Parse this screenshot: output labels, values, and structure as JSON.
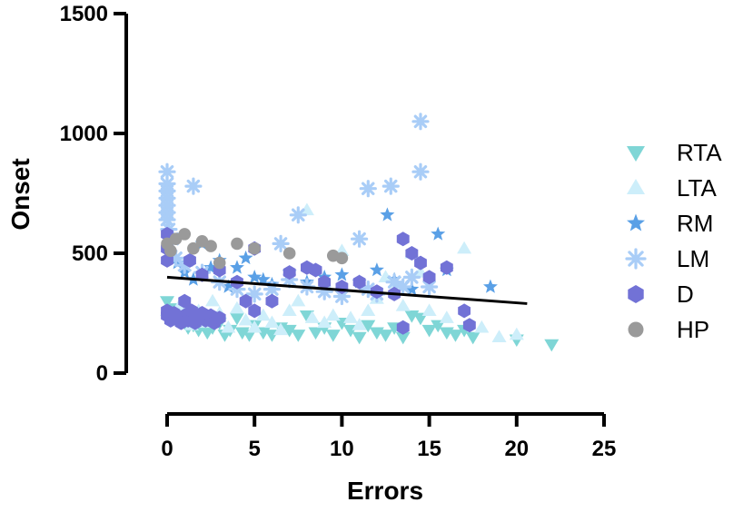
{
  "chart_data": {
    "type": "scatter",
    "title": "",
    "xlabel": "Errors",
    "ylabel": "Onset",
    "xlim": [
      0,
      25
    ],
    "ylim": [
      0,
      1500
    ],
    "xticks": [
      0,
      5,
      10,
      15,
      20,
      25
    ],
    "yticks": [
      0,
      500,
      1000,
      1500
    ],
    "xtick_labels": [
      "0",
      "5",
      "10",
      "15",
      "20",
      "25"
    ],
    "ytick_labels": [
      "0",
      "500",
      "1000",
      "1500"
    ],
    "grid": false,
    "legend": "right",
    "series": [
      {
        "name": "RTA",
        "marker": "triangle-down",
        "color": "#7fd6d6",
        "points": [
          [
            0,
            300
          ],
          [
            0.3,
            270
          ],
          [
            0.5,
            250
          ],
          [
            0.8,
            230
          ],
          [
            1,
            210
          ],
          [
            1.2,
            190
          ],
          [
            1.5,
            200
          ],
          [
            1.8,
            180
          ],
          [
            2,
            220
          ],
          [
            2.3,
            170
          ],
          [
            2.6,
            190
          ],
          [
            3,
            210
          ],
          [
            3.3,
            160
          ],
          [
            3.6,
            180
          ],
          [
            4,
            230
          ],
          [
            4.3,
            170
          ],
          [
            4.7,
            160
          ],
          [
            5,
            200
          ],
          [
            5.5,
            170
          ],
          [
            6,
            160
          ],
          [
            6.5,
            190
          ],
          [
            7,
            180
          ],
          [
            7.5,
            160
          ],
          [
            8,
            240
          ],
          [
            8.5,
            170
          ],
          [
            9,
            190
          ],
          [
            9.5,
            160
          ],
          [
            10,
            210
          ],
          [
            10.5,
            180
          ],
          [
            11,
            150
          ],
          [
            11.5,
            200
          ],
          [
            12,
            170
          ],
          [
            12.5,
            160
          ],
          [
            13,
            190
          ],
          [
            13.5,
            150
          ],
          [
            14,
            240
          ],
          [
            14.5,
            230
          ],
          [
            15,
            180
          ],
          [
            15.5,
            200
          ],
          [
            16,
            170
          ],
          [
            16.5,
            160
          ],
          [
            17,
            180
          ],
          [
            17.5,
            150
          ],
          [
            20,
            140
          ],
          [
            22,
            120
          ]
        ]
      },
      {
        "name": "LTA",
        "marker": "triangle-up",
        "color": "#cdeefa",
        "points": [
          [
            0,
            260
          ],
          [
            0.4,
            220
          ],
          [
            0.7,
            280
          ],
          [
            1,
            240
          ],
          [
            1.4,
            200
          ],
          [
            1.8,
            260
          ],
          [
            2.2,
            210
          ],
          [
            2.6,
            300
          ],
          [
            3,
            250
          ],
          [
            3.5,
            190
          ],
          [
            4,
            270
          ],
          [
            4.5,
            220
          ],
          [
            5,
            190
          ],
          [
            5.5,
            240
          ],
          [
            6,
            210
          ],
          [
            6.5,
            180
          ],
          [
            7,
            260
          ],
          [
            7.5,
            300
          ],
          [
            8,
            680
          ],
          [
            8.3,
            230
          ],
          [
            9,
            210
          ],
          [
            9.5,
            240
          ],
          [
            10,
            510
          ],
          [
            10.5,
            230
          ],
          [
            11,
            200
          ],
          [
            11.5,
            260
          ],
          [
            12,
            310
          ],
          [
            12.5,
            400
          ],
          [
            13,
            350
          ],
          [
            13.5,
            280
          ],
          [
            14,
            500
          ],
          [
            14.5,
            420
          ],
          [
            15,
            260
          ],
          [
            16,
            230
          ],
          [
            17,
            520
          ],
          [
            18,
            190
          ],
          [
            19,
            150
          ],
          [
            20,
            160
          ]
        ]
      },
      {
        "name": "RM",
        "marker": "star",
        "color": "#5aa0e6",
        "points": [
          [
            0.2,
            500
          ],
          [
            0.6,
            460
          ],
          [
            1,
            420
          ],
          [
            1.5,
            390
          ],
          [
            2,
            540
          ],
          [
            2.5,
            440
          ],
          [
            3,
            470
          ],
          [
            3.5,
            360
          ],
          [
            4,
            440
          ],
          [
            4.5,
            480
          ],
          [
            5,
            400
          ],
          [
            5.5,
            390
          ],
          [
            6,
            370
          ],
          [
            7,
            420
          ],
          [
            8,
            380
          ],
          [
            9,
            400
          ],
          [
            10,
            410
          ],
          [
            11,
            380
          ],
          [
            12,
            430
          ],
          [
            12.6,
            660
          ],
          [
            13,
            390
          ],
          [
            14,
            350
          ],
          [
            15.5,
            580
          ],
          [
            16,
            430
          ],
          [
            18.5,
            360
          ]
        ]
      },
      {
        "name": "LM",
        "marker": "asterisk",
        "color": "#a9cdf7",
        "points": [
          [
            0,
            840
          ],
          [
            0,
            790
          ],
          [
            0,
            760
          ],
          [
            0,
            730
          ],
          [
            0,
            700
          ],
          [
            0,
            670
          ],
          [
            0,
            640
          ],
          [
            0.1,
            600
          ],
          [
            0.3,
            560
          ],
          [
            0.5,
            480
          ],
          [
            1,
            450
          ],
          [
            1.5,
            780
          ],
          [
            2,
            420
          ],
          [
            3,
            380
          ],
          [
            4,
            350
          ],
          [
            5,
            330
          ],
          [
            6,
            350
          ],
          [
            6.5,
            540
          ],
          [
            7,
            390
          ],
          [
            7.5,
            660
          ],
          [
            8,
            360
          ],
          [
            9,
            340
          ],
          [
            10,
            320
          ],
          [
            11,
            560
          ],
          [
            11.5,
            350
          ],
          [
            11.5,
            770
          ],
          [
            12,
            330
          ],
          [
            12.8,
            780
          ],
          [
            13,
            380
          ],
          [
            13.5,
            360
          ],
          [
            14,
            400
          ],
          [
            14.5,
            1050
          ],
          [
            14.5,
            840
          ],
          [
            15,
            360
          ]
        ]
      },
      {
        "name": "D",
        "marker": "hexagon",
        "color": "#7272d6",
        "points": [
          [
            0,
            580
          ],
          [
            0,
            520
          ],
          [
            0,
            470
          ],
          [
            0,
            260
          ],
          [
            0,
            240
          ],
          [
            0.2,
            220
          ],
          [
            0.4,
            250
          ],
          [
            0.6,
            230
          ],
          [
            0.8,
            210
          ],
          [
            1,
            240
          ],
          [
            1.2,
            220
          ],
          [
            1.4,
            260
          ],
          [
            1.6,
            210
          ],
          [
            1.8,
            230
          ],
          [
            2,
            250
          ],
          [
            2.2,
            220
          ],
          [
            2.5,
            240
          ],
          [
            2.7,
            210
          ],
          [
            3,
            230
          ],
          [
            1,
            300
          ],
          [
            1.3,
            470
          ],
          [
            2,
            410
          ],
          [
            3,
            430
          ],
          [
            4,
            380
          ],
          [
            4.5,
            300
          ],
          [
            5,
            520
          ],
          [
            5,
            260
          ],
          [
            6,
            300
          ],
          [
            7,
            420
          ],
          [
            8,
            440
          ],
          [
            8.5,
            430
          ],
          [
            9,
            380
          ],
          [
            10,
            360
          ],
          [
            11,
            380
          ],
          [
            12,
            340
          ],
          [
            13,
            330
          ],
          [
            13.5,
            560
          ],
          [
            13.5,
            190
          ],
          [
            14,
            500
          ],
          [
            14.5,
            460
          ],
          [
            15,
            400
          ],
          [
            16,
            440
          ],
          [
            17,
            260
          ],
          [
            17.3,
            200
          ]
        ]
      },
      {
        "name": "HP",
        "marker": "circle",
        "color": "#9a9a9a",
        "points": [
          [
            0,
            540
          ],
          [
            0.2,
            510
          ],
          [
            0.5,
            560
          ],
          [
            1,
            580
          ],
          [
            1.5,
            520
          ],
          [
            2,
            550
          ],
          [
            2.5,
            530
          ],
          [
            3,
            460
          ],
          [
            4,
            540
          ],
          [
            5,
            520
          ],
          [
            7,
            500
          ],
          [
            9.5,
            490
          ],
          [
            10,
            480
          ]
        ]
      }
    ],
    "regression_line": {
      "x": [
        0,
        20.6
      ],
      "y": [
        400,
        290
      ],
      "color": "#000000"
    }
  }
}
